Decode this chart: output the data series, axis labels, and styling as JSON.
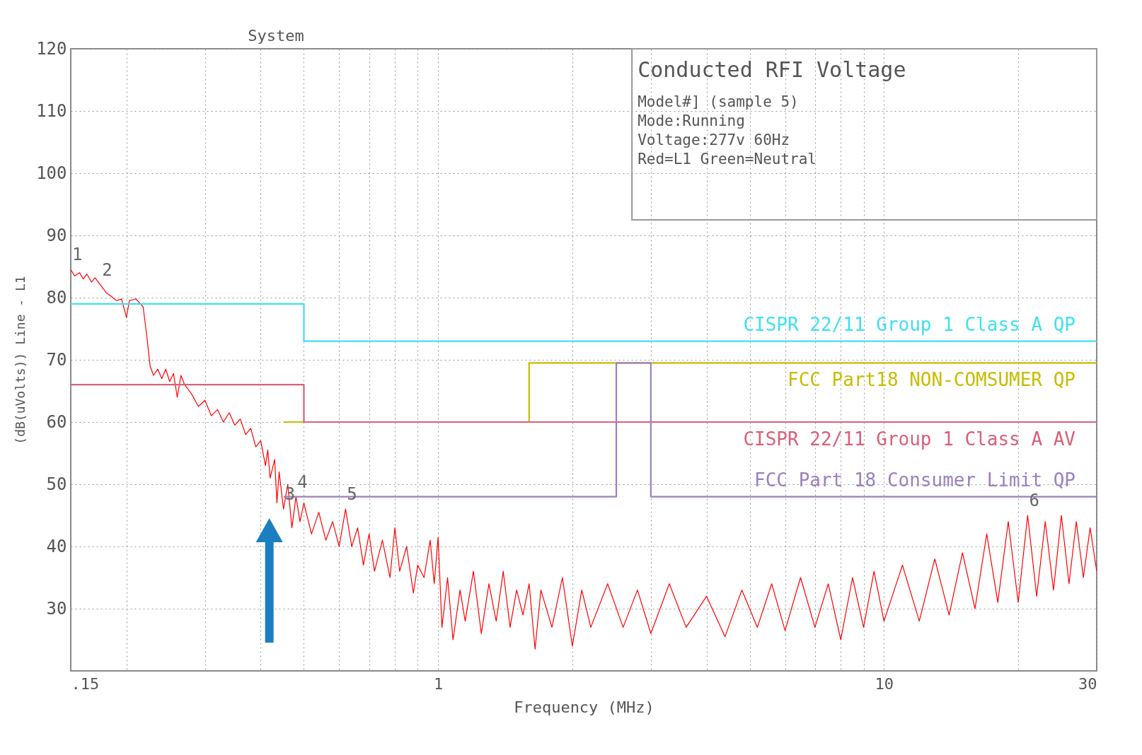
{
  "chart_data": {
    "type": "line",
    "title": "Conducted RFI Voltage",
    "xlabel": "Frequency (MHz)",
    "ylabel": "(dB(uVolts)) Line - L1",
    "log": "x",
    "grid": true,
    "marker": "none",
    "line_style": "solid",
    "xlim": [
      0.15,
      30
    ],
    "ylim": [
      20,
      120
    ],
    "xticks": [
      {
        "value": 0.15,
        "label": ".15"
      },
      {
        "value": 0.2,
        "label": null
      },
      {
        "value": 0.3,
        "label": null
      },
      {
        "value": 0.4,
        "label": null
      },
      {
        "value": 0.5,
        "label": null
      },
      {
        "value": 0.6,
        "label": null
      },
      {
        "value": 0.7,
        "label": null
      },
      {
        "value": 0.8,
        "label": null
      },
      {
        "value": 0.9,
        "label": null
      },
      1,
      {
        "value": 2,
        "label": null
      },
      {
        "value": 3,
        "label": null
      },
      {
        "value": 4,
        "label": null
      },
      {
        "value": 5,
        "label": null
      },
      {
        "value": 6,
        "label": null
      },
      {
        "value": 7,
        "label": null
      },
      {
        "value": 8,
        "label": null
      },
      {
        "value": 9,
        "label": null
      },
      10,
      {
        "value": 20,
        "label": null
      },
      30
    ],
    "yticks": [
      30,
      40,
      50,
      60,
      70,
      80,
      90,
      100,
      110,
      120
    ],
    "annotations": [
      "System",
      "Model#] (sample 5)",
      "Mode:Running",
      "Voltage:277v 60Hz",
      "Red=L1 Green=Neutral",
      {
        "text": "1",
        "x": 0.15,
        "y": 84.5
      },
      {
        "text": "2",
        "x": 0.175,
        "y": 82
      },
      {
        "text": "3",
        "x": 0.45,
        "y": 46
      },
      {
        "text": "4",
        "x": 0.48,
        "y": 48
      },
      {
        "text": "5",
        "x": 0.62,
        "y": 46
      },
      {
        "text": "6",
        "x": 21,
        "y": 45
      }
    ],
    "series": [
      {
        "type": "line",
        "color": "#ff0000",
        "x": [
          0.15,
          0.153,
          0.157,
          0.16,
          0.163,
          0.167,
          0.17,
          0.175,
          0.18,
          0.185,
          0.19,
          0.195,
          0.2,
          0.203,
          0.21,
          0.218,
          0.222,
          0.226,
          0.23,
          0.235,
          0.24,
          0.245,
          0.25,
          0.255,
          0.26,
          0.265,
          0.27,
          0.28,
          0.29,
          0.3,
          0.31,
          0.32,
          0.33,
          0.34,
          0.35,
          0.36,
          0.37,
          0.38,
          0.39,
          0.4,
          0.41,
          0.415,
          0.42,
          0.43,
          0.435,
          0.44,
          0.45,
          0.46,
          0.47,
          0.48,
          0.49,
          0.5,
          0.52,
          0.54,
          0.56,
          0.58,
          0.6,
          0.62,
          0.64,
          0.66,
          0.68,
          0.7,
          0.72,
          0.75,
          0.78,
          0.8,
          0.82,
          0.85,
          0.88,
          0.9,
          0.93,
          0.96,
          0.98,
          1.0,
          1.02,
          1.05,
          1.08,
          1.12,
          1.15,
          1.2,
          1.25,
          1.3,
          1.35,
          1.4,
          1.45,
          1.5,
          1.55,
          1.6,
          1.65,
          1.7,
          1.8,
          1.9,
          2.0,
          2.1,
          2.2,
          2.4,
          2.6,
          2.8,
          3.0,
          3.3,
          3.6,
          4.0,
          4.4,
          4.8,
          5.2,
          5.6,
          6.0,
          6.5,
          7.0,
          7.5,
          8.0,
          8.5,
          9.0,
          9.5,
          10,
          11,
          12,
          13,
          14,
          15,
          16,
          17,
          18,
          19,
          20,
          21,
          22,
          23,
          24,
          25,
          26,
          27,
          28,
          29,
          30
        ],
        "values": [
          84.5,
          83.5,
          84,
          83,
          83.8,
          82.5,
          83.2,
          82,
          80.8,
          80.2,
          79.5,
          79.8,
          76.8,
          79.5,
          79.8,
          78.5,
          74,
          69,
          67.5,
          68.5,
          67,
          68.5,
          66.5,
          67.8,
          64,
          67.5,
          66,
          64.5,
          62.5,
          63.5,
          61,
          62,
          60,
          61.5,
          59.5,
          60.5,
          58,
          59,
          56,
          57,
          53,
          55.5,
          51,
          54,
          47,
          52,
          46,
          50,
          43,
          48,
          44,
          47,
          42,
          45.5,
          41,
          44,
          40,
          46,
          40,
          43,
          37,
          42,
          36,
          41,
          35,
          43,
          36,
          40,
          32.5,
          37,
          35,
          41,
          34,
          41.5,
          27,
          35,
          25,
          33,
          28,
          36,
          26,
          34,
          28,
          36,
          27,
          33,
          29,
          34,
          23.5,
          33,
          27,
          35,
          24,
          33,
          27,
          34,
          27,
          33,
          26,
          34,
          27,
          32,
          25.5,
          33,
          27,
          34,
          26.5,
          35,
          27,
          34,
          25,
          35,
          27,
          36,
          28,
          37,
          28,
          38,
          29,
          39,
          30,
          42,
          31,
          44,
          31,
          45,
          32,
          44,
          33,
          45,
          34,
          44,
          35,
          43,
          36
        ]
      },
      {
        "type": "line",
        "name": "CISPR 22/11 Group 1 Class A QP",
        "color": "#40e0f0",
        "x": [
          0.15,
          0.5,
          0.5,
          30
        ],
        "values": [
          79,
          79,
          73,
          73
        ]
      },
      {
        "type": "line",
        "name": "FCC Part18 NON-COMSUMER QP",
        "color": "#c8bc00",
        "x": [
          0.45,
          1.6,
          1.6,
          30
        ],
        "values": [
          60,
          60,
          69.5,
          69.5
        ]
      },
      {
        "type": "line",
        "name": "CISPR 22/11 Group 1 Class A AV",
        "color": "#d8607a",
        "x": [
          0.15,
          0.5,
          0.5,
          30
        ],
        "values": [
          66,
          66,
          60,
          60
        ]
      },
      {
        "type": "line",
        "name": "FCC Part 18 Consumer Limit QP",
        "color": "#9b80c0",
        "x": [
          0.45,
          2.51,
          2.51,
          3,
          3,
          30
        ],
        "values": [
          48,
          48,
          69.5,
          69.5,
          48,
          48
        ]
      }
    ]
  }
}
